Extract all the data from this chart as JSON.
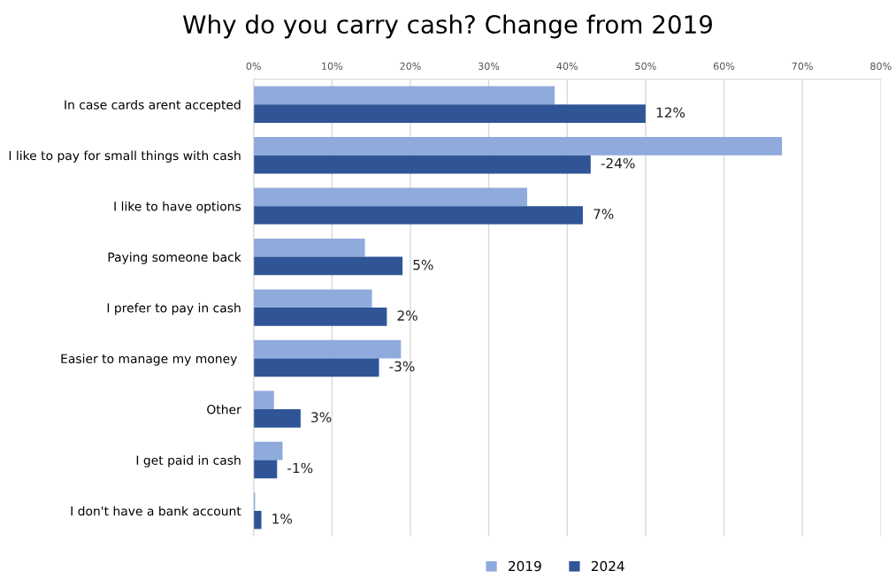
{
  "chart_data": {
    "type": "bar",
    "orientation": "horizontal",
    "title": "Why do you carry cash? Change from 2019",
    "categories": [
      "In case cards arent accepted",
      "I like to pay for small things with cash",
      "I like to have options",
      "Paying someone back",
      "I prefer to pay in cash",
      "Easier to manage my money ",
      "Other",
      "I get paid in cash",
      "I don't have a bank account"
    ],
    "series": [
      {
        "name": "2019",
        "color": "#8faadc",
        "values": [
          38.4,
          67.4,
          34.9,
          14.2,
          15.1,
          18.8,
          2.6,
          3.7,
          0.2
        ]
      },
      {
        "name": "2024",
        "color": "#2f5597",
        "values": [
          50.0,
          43.0,
          42.0,
          19.0,
          17.0,
          16.0,
          6.0,
          3.0,
          1.0
        ]
      }
    ],
    "annotations": [
      {
        "text": "12%",
        "x": 50.0,
        "y": "In case cards arent accepted"
      },
      {
        "text": "-24%",
        "x": 43.0,
        "y": "I like to pay for small things with cash"
      },
      {
        "text": "7%",
        "x": 42.0,
        "y": "I like to have options"
      },
      {
        "text": "5%",
        "x": 19.0,
        "y": "Paying someone back"
      },
      {
        "text": "2%",
        "x": 17.0,
        "y": "I prefer to pay in cash"
      },
      {
        "text": "-3%",
        "x": 16.0,
        "y": "Easier to manage my money "
      },
      {
        "text": "3%",
        "x": 6.0,
        "y": "Other"
      },
      {
        "text": "-1%",
        "x": 3.0,
        "y": "I get paid in cash"
      },
      {
        "text": "1%",
        "x": 1.0,
        "y": "I don't have a bank account"
      }
    ],
    "xlim": [
      0,
      80
    ],
    "xticks": [
      {
        "value": 0,
        "label": "0%"
      },
      {
        "value": 10,
        "label": "10%"
      },
      {
        "value": 20,
        "label": "20%"
      },
      {
        "value": 30,
        "label": "30%"
      },
      {
        "value": 40,
        "label": "40%"
      },
      {
        "value": 50,
        "label": "50%"
      },
      {
        "value": 60,
        "label": "60%"
      },
      {
        "value": 70,
        "label": "70%"
      },
      {
        "value": 80,
        "label": "80%"
      }
    ],
    "grid": "x",
    "legend": "bottom"
  }
}
